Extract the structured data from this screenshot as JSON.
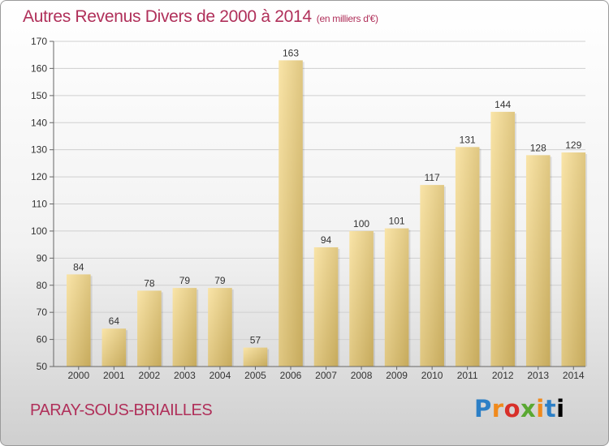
{
  "title": "Autres Revenus Divers de 2000 à 2014",
  "title_unit": "(en milliers d'€)",
  "location": "PARAY-SOUS-BRIAILLES",
  "brand": {
    "name": "Proxiti",
    "letters": [
      "P",
      "r",
      "o",
      "x",
      "i",
      "t",
      "i"
    ]
  },
  "colors": {
    "title": "#b0305a",
    "bar_light": "#f7dfa0",
    "bar_dark": "#c9ad60",
    "grid": "#cccccc"
  },
  "chart_data": {
    "type": "bar",
    "categories": [
      "2000",
      "2001",
      "2002",
      "2003",
      "2004",
      "2005",
      "2006",
      "2007",
      "2008",
      "2009",
      "2010",
      "2011",
      "2012",
      "2013",
      "2014"
    ],
    "values": [
      84,
      64,
      78,
      79,
      79,
      57,
      163,
      94,
      100,
      101,
      117,
      131,
      144,
      128,
      129
    ],
    "title": "Autres Revenus Divers de 2000 à 2014",
    "subtitle": "(en milliers d'€)",
    "xlabel": "",
    "ylabel": "",
    "ylim": [
      50,
      170
    ],
    "yticks": [
      50,
      60,
      70,
      80,
      90,
      100,
      110,
      120,
      130,
      140,
      150,
      160,
      170
    ],
    "grid": true,
    "data_labels": true
  }
}
